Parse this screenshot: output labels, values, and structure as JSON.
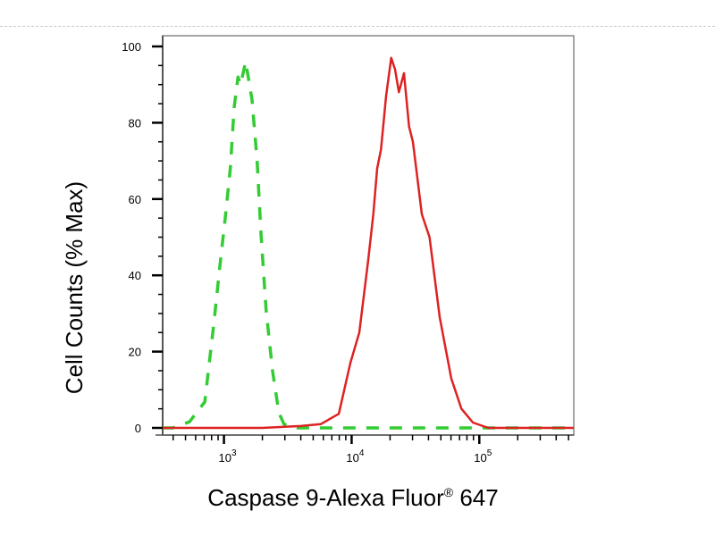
{
  "chart_data": {
    "type": "line",
    "title": "",
    "xlabel": "Caspase 9-Alexa Fluor",
    "xlabel_sup": "®",
    "xlabel_suffix": " 647",
    "ylabel": "Cell Counts (% Max)",
    "x_scale": "log",
    "xlim_log10": [
      2.52,
      5.74
    ],
    "ylim": [
      0,
      100
    ],
    "yticks": [
      "0",
      "20",
      "40",
      "60",
      "80",
      "100"
    ],
    "xticks": [
      {
        "base": "10",
        "exp": "3"
      },
      {
        "base": "10",
        "exp": "4"
      },
      {
        "base": "10",
        "exp": "5"
      }
    ],
    "grid": false,
    "series": [
      {
        "color": "#33cc33",
        "style": "dashed",
        "log10_x": [
          2.52,
          2.6,
          2.73,
          2.85,
          2.92,
          2.97,
          3.01,
          3.05,
          3.08,
          3.11,
          3.13,
          3.17,
          3.22,
          3.26,
          3.29,
          3.33,
          3.38,
          3.43,
          3.47,
          3.55,
          5.74
        ],
        "y": [
          0,
          0,
          1.6,
          6.8,
          27,
          43,
          55,
          68,
          84,
          92,
          90,
          96,
          86,
          70,
          51,
          31,
          15,
          4,
          1,
          0,
          0
        ]
      },
      {
        "color": "#dd2222",
        "style": "solid",
        "log10_x": [
          2.52,
          3.3,
          3.6,
          3.76,
          3.9,
          3.99,
          4.06,
          4.13,
          4.17,
          4.2,
          4.23,
          4.27,
          4.31,
          4.34,
          4.37,
          4.41,
          4.45,
          4.48,
          4.55,
          4.61,
          4.69,
          4.78,
          4.86,
          4.95,
          5.07,
          5.74
        ],
        "y": [
          0,
          0,
          0.5,
          1,
          3.7,
          17,
          25,
          44,
          56,
          68,
          73,
          87,
          97,
          94,
          88,
          93,
          79,
          75,
          56,
          50,
          29,
          13,
          5,
          1.4,
          0,
          0
        ]
      }
    ]
  }
}
